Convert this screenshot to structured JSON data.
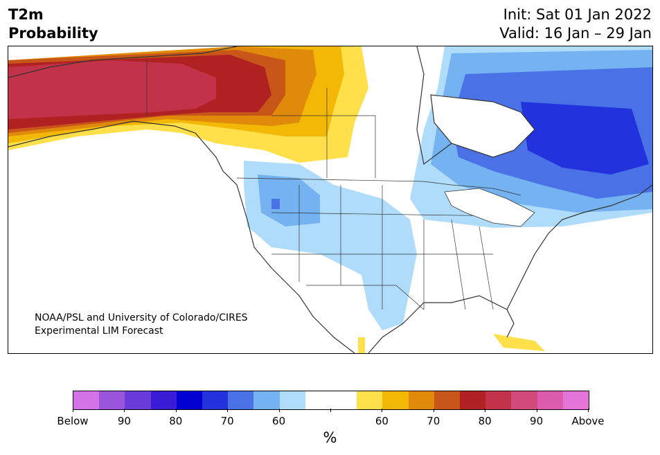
{
  "header": {
    "title_line1": "T2m",
    "title_line2": "Probability",
    "init": "Init: Sat 01 Jan 2022",
    "valid": "Valid: 16 Jan – 29 Jan"
  },
  "map": {
    "credit_line1": "NOAA/PSL and University of Colorado/CIRES",
    "credit_line2": "Experimental LIM Forecast",
    "region": "North America"
  },
  "colorbar": {
    "colors": [
      "#d472e8",
      "#9b55dd",
      "#6a3bd8",
      "#3a1bd6",
      "#0000d2",
      "#2232dc",
      "#4a72e6",
      "#74b2f2",
      "#b0dcfb",
      "#ffffff",
      "#ffffff",
      "#ffe04a",
      "#f2b805",
      "#e08a0c",
      "#c85618",
      "#b02222",
      "#c2334a",
      "#d24a7c",
      "#dc5bac",
      "#e574d8"
    ],
    "labels": [
      "Below",
      "90",
      "80",
      "70",
      "60",
      "",
      "60",
      "70",
      "80",
      "90",
      "Above"
    ],
    "unit": "%"
  }
}
